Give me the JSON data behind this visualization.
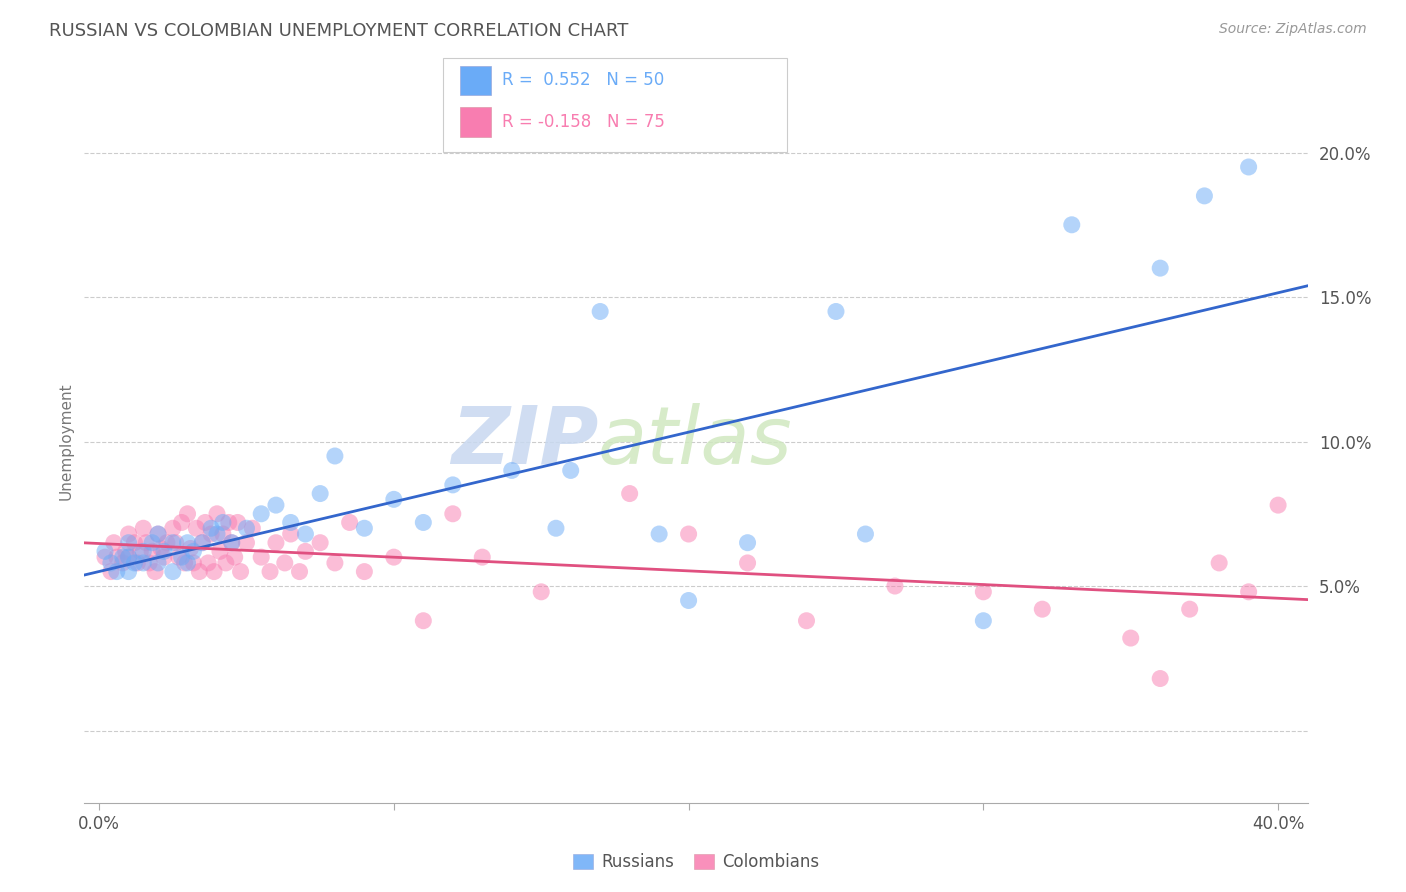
{
  "title": "RUSSIAN VS COLOMBIAN UNEMPLOYMENT CORRELATION CHART",
  "source_text": "Source: ZipAtlas.com",
  "ylabel": "Unemployment",
  "xlim": [
    -0.005,
    0.41
  ],
  "ylim": [
    -0.025,
    0.225
  ],
  "ytick_labels": [
    "",
    "5.0%",
    "10.0%",
    "15.0%",
    "20.0%"
  ],
  "ytick_values": [
    0.0,
    0.05,
    0.1,
    0.15,
    0.2
  ],
  "xtick_labels": [
    "0.0%",
    "",
    "",
    "",
    "40.0%"
  ],
  "xtick_values": [
    0.0,
    0.1,
    0.2,
    0.3,
    0.4
  ],
  "legend_info": [
    {
      "label": "Russians",
      "color": "#6aabf7",
      "R": "0.552",
      "N": "50"
    },
    {
      "label": "Colombians",
      "color": "#f87db0",
      "R": "-0.158",
      "N": "75"
    }
  ],
  "watermark_zip": "ZIP",
  "watermark_atlas": "atlas",
  "blue_scatter": "#6aabf7",
  "pink_scatter": "#f87db0",
  "blue_line": "#3366cc",
  "pink_line": "#e05080",
  "grid_color": "#cccccc",
  "bg_color": "#ffffff",
  "russians_x": [
    0.002,
    0.004,
    0.006,
    0.008,
    0.01,
    0.01,
    0.01,
    0.012,
    0.015,
    0.015,
    0.018,
    0.02,
    0.02,
    0.022,
    0.025,
    0.025,
    0.028,
    0.03,
    0.03,
    0.032,
    0.035,
    0.038,
    0.04,
    0.042,
    0.045,
    0.05,
    0.055,
    0.06,
    0.065,
    0.07,
    0.075,
    0.08,
    0.09,
    0.1,
    0.11,
    0.12,
    0.14,
    0.155,
    0.16,
    0.17,
    0.19,
    0.2,
    0.22,
    0.25,
    0.26,
    0.3,
    0.33,
    0.36,
    0.375,
    0.39
  ],
  "russians_y": [
    0.062,
    0.058,
    0.055,
    0.06,
    0.065,
    0.06,
    0.055,
    0.058,
    0.062,
    0.058,
    0.065,
    0.068,
    0.058,
    0.062,
    0.065,
    0.055,
    0.06,
    0.065,
    0.058,
    0.062,
    0.065,
    0.07,
    0.068,
    0.072,
    0.065,
    0.07,
    0.075,
    0.078,
    0.072,
    0.068,
    0.082,
    0.095,
    0.07,
    0.08,
    0.072,
    0.085,
    0.09,
    0.07,
    0.09,
    0.145,
    0.068,
    0.045,
    0.065,
    0.145,
    0.068,
    0.038,
    0.175,
    0.16,
    0.185,
    0.195
  ],
  "colombians_x": [
    0.002,
    0.004,
    0.005,
    0.006,
    0.008,
    0.009,
    0.01,
    0.01,
    0.012,
    0.013,
    0.014,
    0.015,
    0.016,
    0.017,
    0.018,
    0.019,
    0.02,
    0.021,
    0.022,
    0.023,
    0.025,
    0.026,
    0.027,
    0.028,
    0.029,
    0.03,
    0.031,
    0.032,
    0.033,
    0.034,
    0.035,
    0.036,
    0.037,
    0.038,
    0.039,
    0.04,
    0.041,
    0.042,
    0.043,
    0.044,
    0.045,
    0.046,
    0.047,
    0.048,
    0.05,
    0.052,
    0.055,
    0.058,
    0.06,
    0.063,
    0.065,
    0.068,
    0.07,
    0.075,
    0.08,
    0.085,
    0.09,
    0.1,
    0.11,
    0.12,
    0.13,
    0.15,
    0.18,
    0.2,
    0.22,
    0.24,
    0.27,
    0.3,
    0.32,
    0.35,
    0.36,
    0.37,
    0.38,
    0.39,
    0.4
  ],
  "colombians_y": [
    0.06,
    0.055,
    0.065,
    0.06,
    0.058,
    0.062,
    0.068,
    0.06,
    0.065,
    0.058,
    0.062,
    0.07,
    0.065,
    0.058,
    0.062,
    0.055,
    0.068,
    0.063,
    0.06,
    0.065,
    0.07,
    0.065,
    0.06,
    0.072,
    0.058,
    0.075,
    0.063,
    0.058,
    0.07,
    0.055,
    0.065,
    0.072,
    0.058,
    0.068,
    0.055,
    0.075,
    0.062,
    0.068,
    0.058,
    0.072,
    0.065,
    0.06,
    0.072,
    0.055,
    0.065,
    0.07,
    0.06,
    0.055,
    0.065,
    0.058,
    0.068,
    0.055,
    0.062,
    0.065,
    0.058,
    0.072,
    0.055,
    0.06,
    0.038,
    0.075,
    0.06,
    0.048,
    0.082,
    0.068,
    0.058,
    0.038,
    0.05,
    0.048,
    0.042,
    0.032,
    0.018,
    0.042,
    0.058,
    0.048,
    0.078
  ]
}
